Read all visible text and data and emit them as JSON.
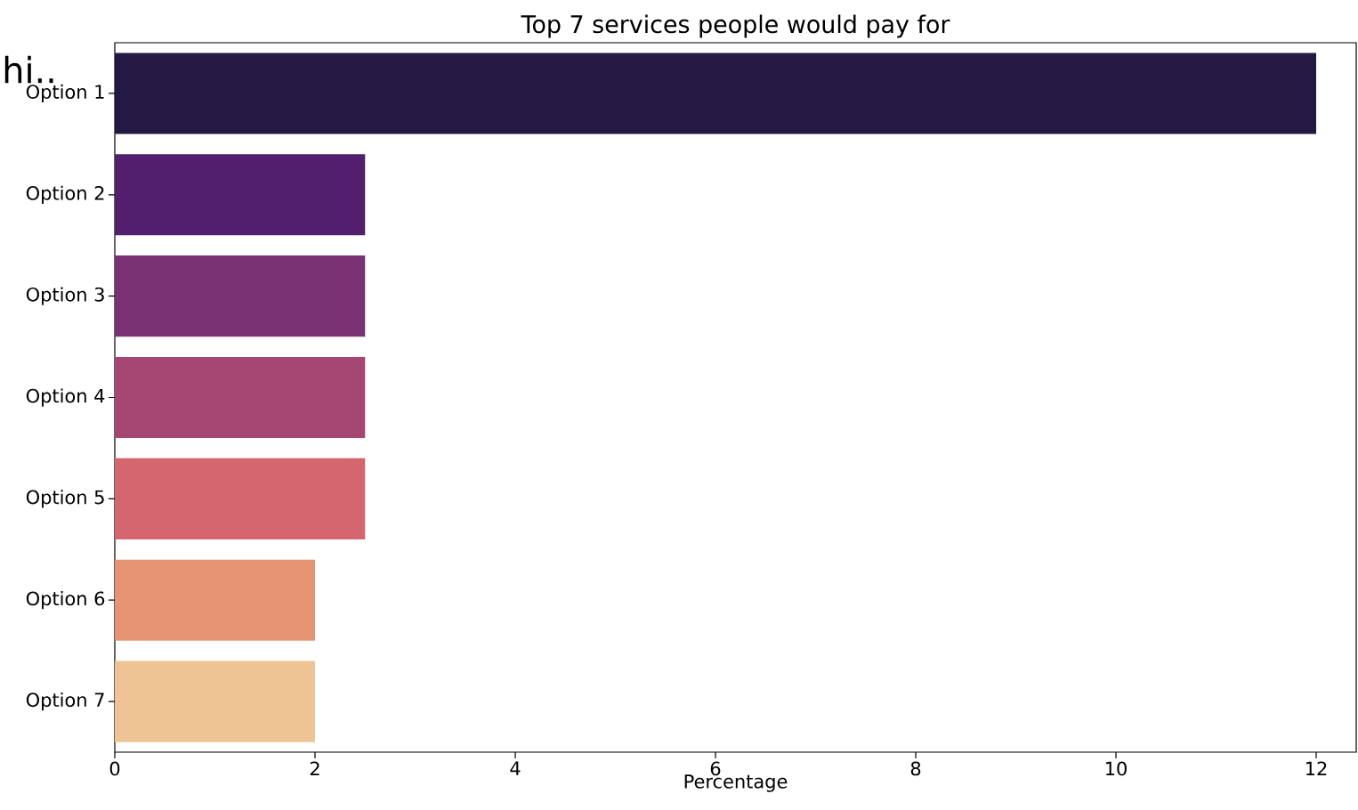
{
  "chart_data": {
    "type": "bar",
    "orientation": "horizontal",
    "title": "Top 7 services people would pay for",
    "xlabel": "Percentage",
    "categories": [
      "Option 1",
      "Option 2",
      "Option 3",
      "Option 4",
      "Option 5",
      "Option 6",
      "Option 7"
    ],
    "values": [
      12,
      2.5,
      2.5,
      2.5,
      2.5,
      2,
      2
    ],
    "colors": [
      "#231942",
      "#511f6d",
      "#7a3174",
      "#a64672",
      "#d5656f",
      "#e69373",
      "#eec494"
    ],
    "xlim": [
      0,
      12.4
    ],
    "xticks": [
      0,
      2,
      4,
      6,
      8,
      10,
      12
    ],
    "annotations": [
      "hi.."
    ]
  }
}
